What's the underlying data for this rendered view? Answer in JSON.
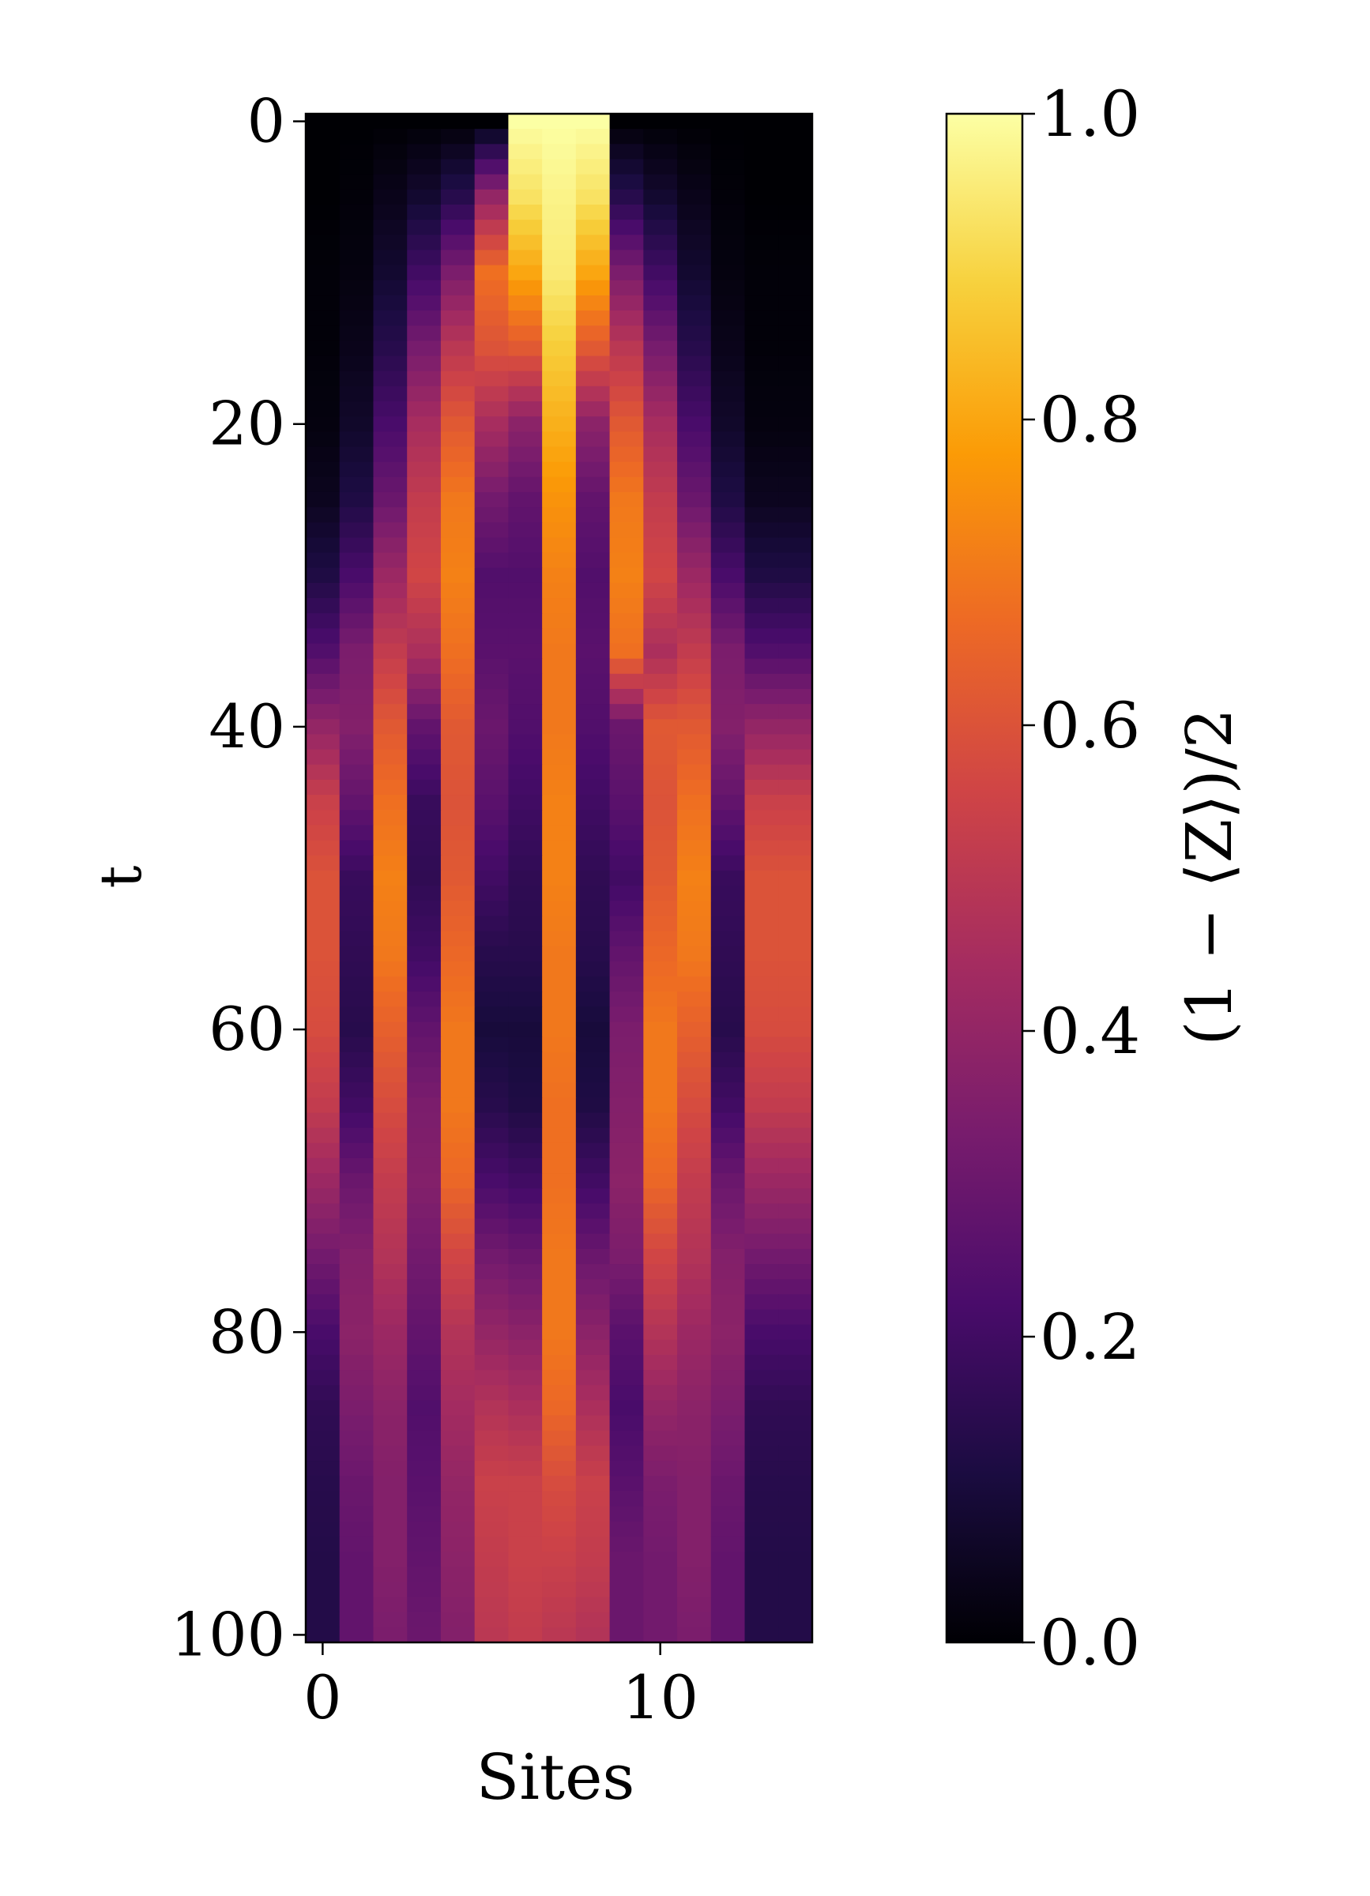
{
  "chart_data": {
    "type": "heatmap",
    "title": "",
    "xlabel": "Sites",
    "ylabel": "t",
    "colorbar_label": "(1 − ⟨Z⟩)/2",
    "x_ticks": [
      "0",
      "10"
    ],
    "x_tick_values": [
      0,
      10
    ],
    "y_ticks": [
      "0",
      "20",
      "40",
      "60",
      "80",
      "100"
    ],
    "y_tick_values": [
      0,
      20,
      40,
      60,
      80,
      100
    ],
    "cbar_ticks": [
      "0.0",
      "0.2",
      "0.4",
      "0.6",
      "0.8",
      "1.0"
    ],
    "cbar_tick_values": [
      0.0,
      0.2,
      0.4,
      0.6,
      0.8,
      1.0
    ],
    "x_range": [
      0,
      14
    ],
    "y_range": [
      0,
      100
    ],
    "color_range": [
      0.0,
      1.0
    ],
    "colormap": "inferno",
    "colormap_stops": [
      "#000004",
      "#1b0c41",
      "#4a0c6b",
      "#781c6d",
      "#a52c60",
      "#cf4446",
      "#ed6925",
      "#fb9b06",
      "#f7d13d",
      "#fcffa4"
    ],
    "sites": 15,
    "time_samples": [
      0,
      5,
      10,
      15,
      20,
      25,
      30,
      35,
      40,
      45,
      50,
      55,
      60,
      65,
      70,
      75,
      80,
      85,
      90,
      95,
      100
    ],
    "values": [
      [
        0.0,
        0.0,
        0.0,
        0.0,
        0.0,
        0.0,
        1.0,
        1.0,
        1.0,
        0.0,
        0.0,
        0.0,
        0.0,
        0.0,
        0.0
      ],
      [
        0.0,
        0.01,
        0.04,
        0.08,
        0.14,
        0.4,
        0.93,
        0.97,
        0.93,
        0.14,
        0.08,
        0.04,
        0.01,
        0.0,
        0.0
      ],
      [
        0.01,
        0.02,
        0.08,
        0.2,
        0.34,
        0.68,
        0.8,
        0.95,
        0.8,
        0.34,
        0.2,
        0.08,
        0.02,
        0.01,
        0.01
      ],
      [
        0.01,
        0.04,
        0.14,
        0.33,
        0.5,
        0.6,
        0.62,
        0.88,
        0.62,
        0.5,
        0.33,
        0.14,
        0.04,
        0.01,
        0.01
      ],
      [
        0.02,
        0.07,
        0.22,
        0.45,
        0.62,
        0.45,
        0.38,
        0.82,
        0.38,
        0.62,
        0.45,
        0.22,
        0.07,
        0.02,
        0.02
      ],
      [
        0.05,
        0.12,
        0.3,
        0.52,
        0.7,
        0.32,
        0.28,
        0.76,
        0.28,
        0.7,
        0.52,
        0.3,
        0.12,
        0.05,
        0.05
      ],
      [
        0.12,
        0.22,
        0.42,
        0.56,
        0.72,
        0.24,
        0.24,
        0.72,
        0.24,
        0.72,
        0.56,
        0.42,
        0.22,
        0.12,
        0.12
      ],
      [
        0.24,
        0.34,
        0.52,
        0.46,
        0.68,
        0.26,
        0.26,
        0.7,
        0.26,
        0.68,
        0.46,
        0.52,
        0.34,
        0.24,
        0.24
      ],
      [
        0.4,
        0.36,
        0.62,
        0.28,
        0.62,
        0.3,
        0.24,
        0.7,
        0.24,
        0.3,
        0.62,
        0.62,
        0.36,
        0.4,
        0.4
      ],
      [
        0.54,
        0.28,
        0.68,
        0.18,
        0.6,
        0.26,
        0.2,
        0.72,
        0.2,
        0.26,
        0.6,
        0.68,
        0.28,
        0.54,
        0.54
      ],
      [
        0.6,
        0.18,
        0.72,
        0.16,
        0.62,
        0.2,
        0.16,
        0.72,
        0.16,
        0.2,
        0.62,
        0.72,
        0.18,
        0.6,
        0.6
      ],
      [
        0.6,
        0.16,
        0.7,
        0.2,
        0.66,
        0.14,
        0.14,
        0.7,
        0.14,
        0.28,
        0.66,
        0.7,
        0.16,
        0.6,
        0.6
      ],
      [
        0.58,
        0.14,
        0.64,
        0.28,
        0.7,
        0.1,
        0.1,
        0.7,
        0.1,
        0.34,
        0.7,
        0.64,
        0.14,
        0.58,
        0.58
      ],
      [
        0.52,
        0.2,
        0.58,
        0.34,
        0.7,
        0.14,
        0.12,
        0.68,
        0.12,
        0.36,
        0.7,
        0.58,
        0.2,
        0.52,
        0.52
      ],
      [
        0.42,
        0.3,
        0.52,
        0.36,
        0.66,
        0.22,
        0.2,
        0.68,
        0.2,
        0.38,
        0.66,
        0.52,
        0.3,
        0.42,
        0.42
      ],
      [
        0.32,
        0.36,
        0.48,
        0.32,
        0.56,
        0.32,
        0.3,
        0.7,
        0.3,
        0.34,
        0.56,
        0.48,
        0.36,
        0.32,
        0.32
      ],
      [
        0.22,
        0.38,
        0.42,
        0.28,
        0.48,
        0.4,
        0.38,
        0.7,
        0.38,
        0.26,
        0.48,
        0.42,
        0.38,
        0.22,
        0.22
      ],
      [
        0.16,
        0.34,
        0.38,
        0.24,
        0.44,
        0.48,
        0.46,
        0.66,
        0.46,
        0.22,
        0.4,
        0.38,
        0.34,
        0.16,
        0.16
      ],
      [
        0.14,
        0.3,
        0.36,
        0.26,
        0.4,
        0.54,
        0.54,
        0.58,
        0.54,
        0.26,
        0.34,
        0.36,
        0.3,
        0.14,
        0.14
      ],
      [
        0.13,
        0.28,
        0.36,
        0.28,
        0.38,
        0.52,
        0.54,
        0.54,
        0.52,
        0.3,
        0.32,
        0.36,
        0.28,
        0.13,
        0.13
      ],
      [
        0.13,
        0.28,
        0.34,
        0.3,
        0.36,
        0.5,
        0.52,
        0.5,
        0.48,
        0.3,
        0.32,
        0.34,
        0.28,
        0.13,
        0.13
      ]
    ]
  }
}
